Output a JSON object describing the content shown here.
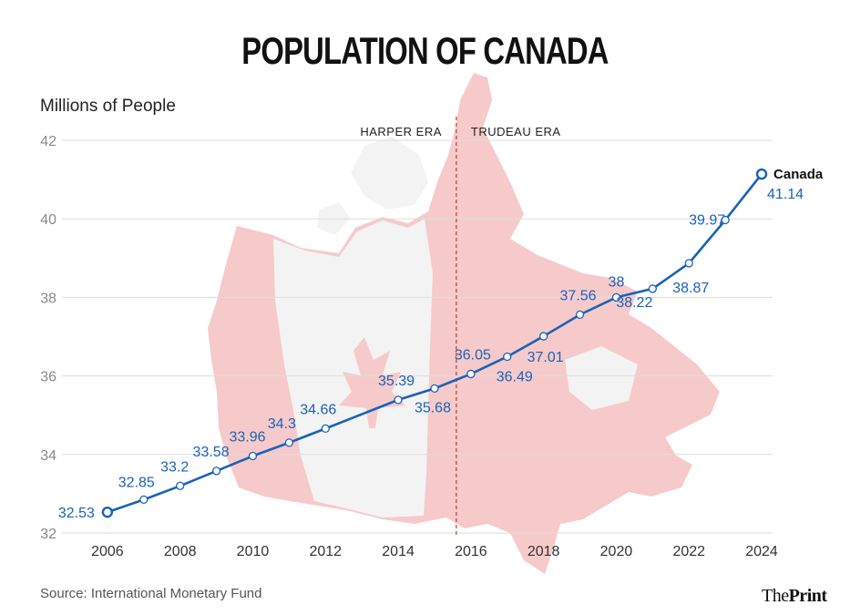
{
  "title": "POPULATION OF CANADA",
  "source": "Source: International Monetary Fund",
  "brand": {
    "part1": "The",
    "part2": "Print"
  },
  "colors": {
    "line": "#1a62b8",
    "map": "#f6caca",
    "map_white": "#f3f3f3",
    "grid": "#dddddd",
    "era_line": "#c0392b"
  },
  "chart_data": {
    "type": "line",
    "title": "POPULATION OF CANADA",
    "ylabel": "Millions of People",
    "xlabel": "",
    "xlim": [
      2005,
      2024.3
    ],
    "ylim": [
      32,
      42
    ],
    "y_ticks": [
      "32",
      "34",
      "36",
      "38",
      "40",
      "42"
    ],
    "x_ticks": [
      "2006",
      "2008",
      "2010",
      "2012",
      "2014",
      "2016",
      "2018",
      "2020",
      "2022",
      "2024"
    ],
    "x": [
      2006,
      2007,
      2008,
      2009,
      2010,
      2011,
      2012,
      2014,
      2015,
      2016,
      2017,
      2018,
      2019,
      2020,
      2021,
      2022,
      2023,
      2024
    ],
    "series": [
      {
        "name": "Canada",
        "values": [
          32.53,
          32.85,
          33.2,
          33.58,
          33.96,
          34.3,
          34.66,
          35.39,
          35.68,
          36.05,
          36.49,
          37.01,
          37.56,
          38,
          38.22,
          38.87,
          39.97,
          41.14
        ],
        "labels": [
          "32.53",
          "32.85",
          "33.2",
          "33.58",
          "33.96",
          "34.3",
          "34.66",
          "35.39",
          "35.68",
          "36.05",
          "36.49",
          "37.01",
          "37.56",
          "38",
          "38.22",
          "38.87",
          "39.97",
          "41.14"
        ]
      }
    ],
    "annotations": {
      "divider_x": 2015.6,
      "left_era": "HARPER ERA",
      "right_era": "TRUDEAU ERA"
    },
    "grid": true,
    "background": "map of Canada"
  }
}
